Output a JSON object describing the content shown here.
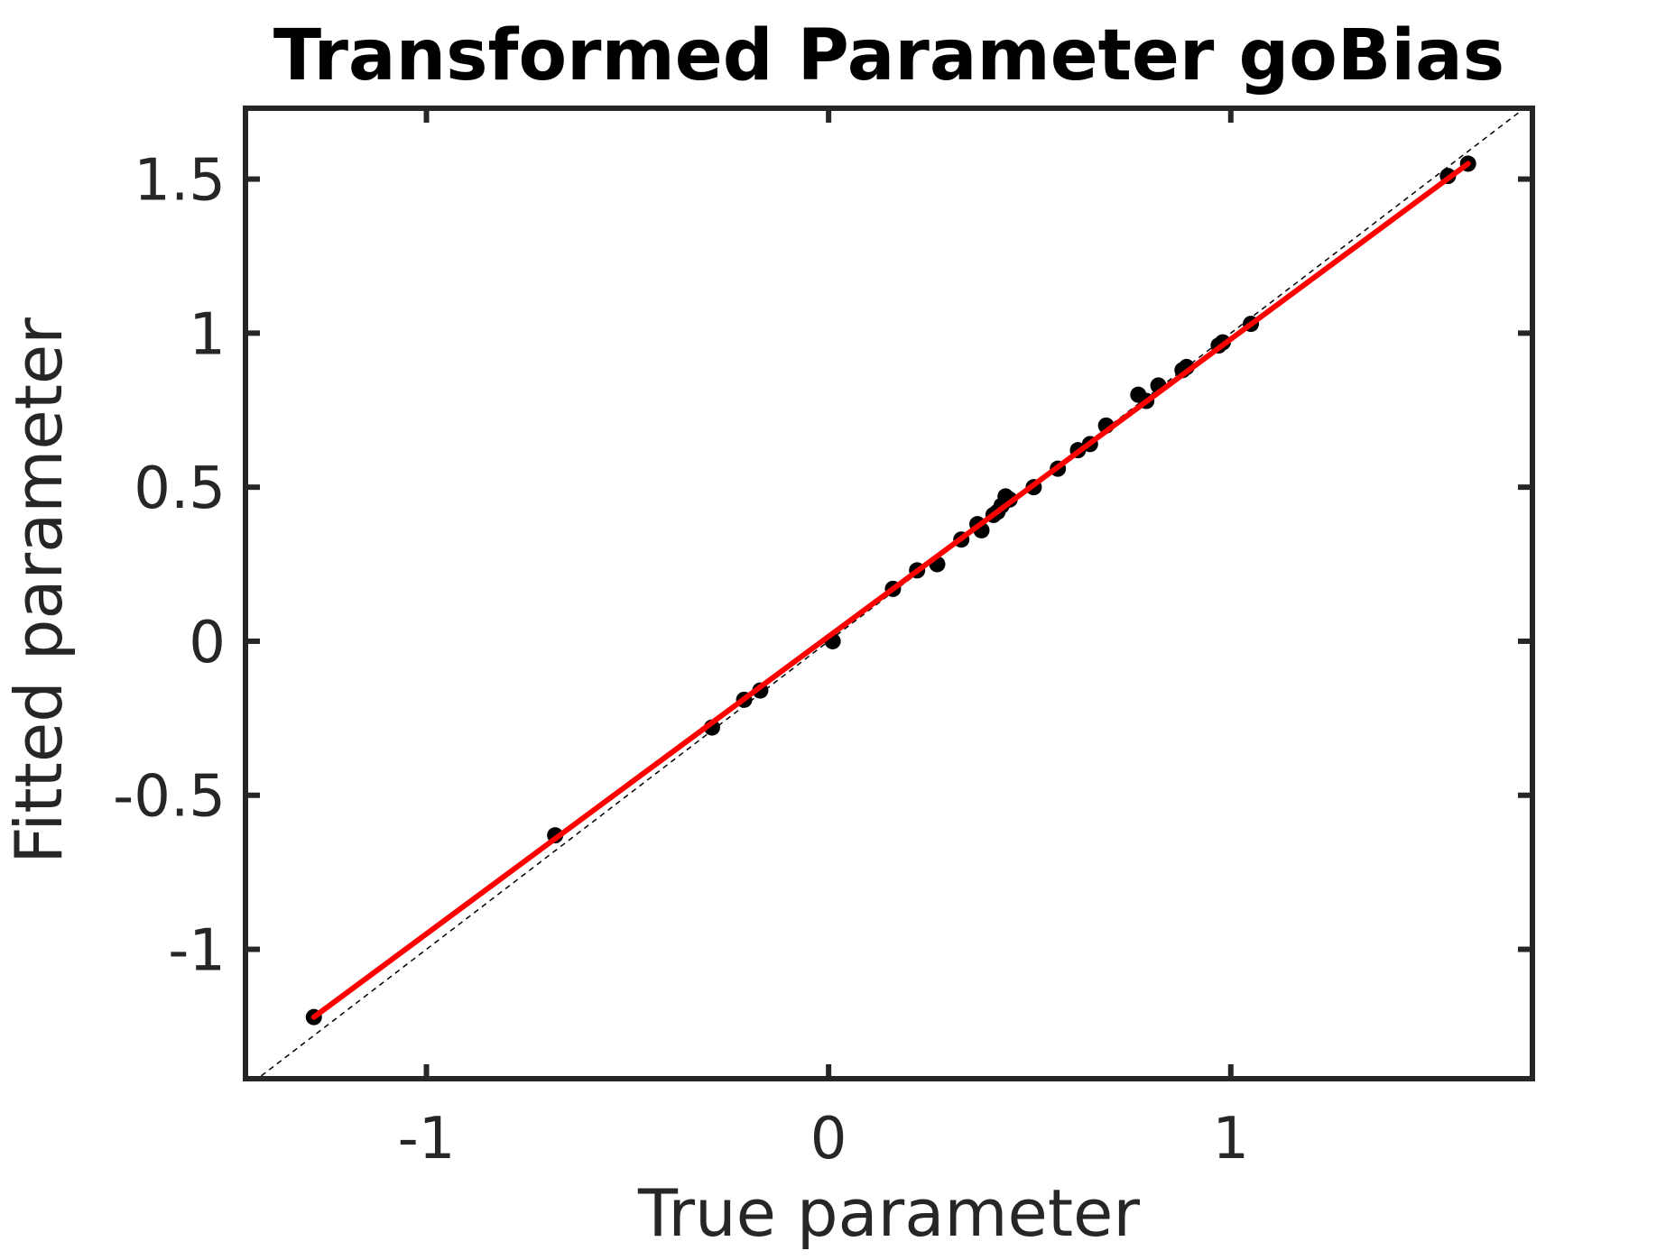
{
  "chart_data": {
    "type": "scatter",
    "title": "Transformed Parameter goBias",
    "xlabel": "True parameter",
    "ylabel": "Fitted parameter",
    "xlim": [
      -1.45,
      1.75
    ],
    "ylim": [
      -1.42,
      1.73
    ],
    "xticks": [
      -1,
      0,
      1
    ],
    "xtick_labels": [
      "-1",
      "0",
      "1"
    ],
    "yticks": [
      -1,
      -0.5,
      0,
      0.5,
      1,
      1.5
    ],
    "ytick_labels": [
      "-1",
      "-0.5",
      "0",
      "0.5",
      "1",
      "1.5"
    ],
    "grid": false,
    "legend": "none",
    "colors": {
      "points": "#000000",
      "fit_line": "#ff0000",
      "identity_line": "#000000",
      "axes": "#262626"
    },
    "series": [
      {
        "kind": "points",
        "x": [
          -1.28,
          -0.68,
          -0.29,
          -0.21,
          -0.17,
          0.01,
          0.16,
          0.22,
          0.27,
          0.33,
          0.37,
          0.38,
          0.41,
          0.42,
          0.43,
          0.44,
          0.45,
          0.51,
          0.57,
          0.62,
          0.65,
          0.69,
          0.77,
          0.79,
          0.82,
          0.88,
          0.89,
          0.97,
          0.98,
          1.05,
          1.54,
          1.59
        ],
        "y": [
          -1.22,
          -0.63,
          -0.28,
          -0.19,
          -0.16,
          0.0,
          0.17,
          0.23,
          0.25,
          0.33,
          0.38,
          0.36,
          0.41,
          0.42,
          0.44,
          0.47,
          0.46,
          0.5,
          0.56,
          0.62,
          0.64,
          0.7,
          0.8,
          0.78,
          0.83,
          0.88,
          0.89,
          0.96,
          0.97,
          1.03,
          1.51,
          1.55
        ]
      },
      {
        "kind": "fit-line",
        "x": [
          -1.28,
          1.59
        ],
        "y": [
          -1.22,
          1.55
        ]
      },
      {
        "kind": "identity-line",
        "x": [
          -1.45,
          1.73
        ],
        "y": [
          -1.45,
          1.73
        ]
      }
    ]
  }
}
